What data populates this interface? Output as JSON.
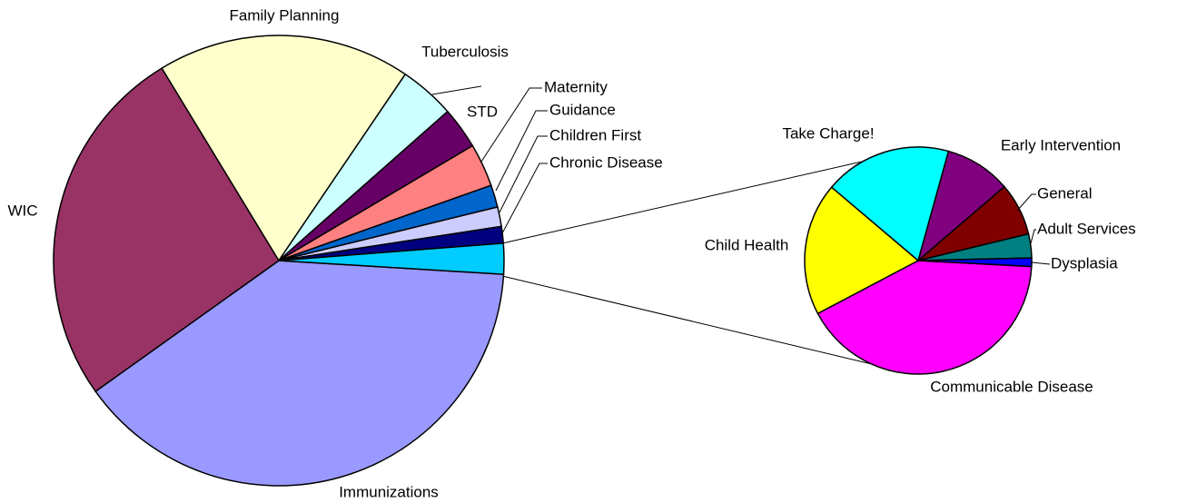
{
  "chart_data": [
    {
      "type": "pie",
      "categories": [
        "Immunizations",
        "WIC",
        "Family Planning",
        "Tuberculosis",
        "STD",
        "Maternity",
        "Guidance",
        "Children First",
        "Chronic Disease",
        null
      ],
      "values": [
        39.2,
        26.2,
        18.2,
        4.0,
        3.0,
        3.1,
        1.6,
        1.4,
        1.2,
        2.2
      ],
      "colors": [
        "#9999ff",
        "#993366",
        "#ffffcc",
        "#ccffff",
        "#660066",
        "#ff8080",
        "#0066cc",
        "#ccccff",
        "#000080",
        "#00ccff"
      ]
    },
    {
      "type": "pie",
      "categories": [
        "Communicable Disease",
        "Child Health",
        "Take Charge!",
        "Early Intervention",
        "General",
        "Adult Services",
        "Dysplasia"
      ],
      "values": [
        41.4,
        18.9,
        18.1,
        9.4,
        7.5,
        3.4,
        1.2
      ],
      "colors": [
        "#ff00ff",
        "#ffff00",
        "#00ffff",
        "#800080",
        "#800000",
        "#008080",
        "#0000ff"
      ]
    }
  ]
}
